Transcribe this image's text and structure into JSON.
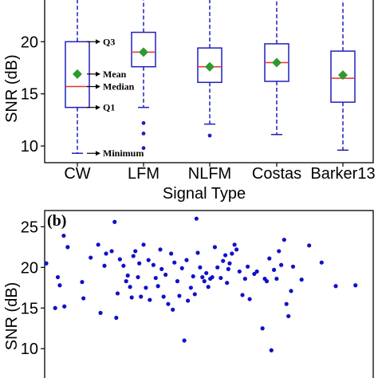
{
  "chart_data": [
    {
      "type": "box",
      "panel_label": "",
      "xlabel": "Signal Type",
      "ylabel": "SNR (dB)",
      "ylim": [
        8.4,
        24.0
      ],
      "yticks": [
        10,
        15,
        20
      ],
      "grid": false,
      "categories": [
        "CW",
        "LFM",
        "NLFM",
        "Costas",
        "Barker13"
      ],
      "boxes": [
        {
          "category": "CW",
          "whisker_low": 9.3,
          "q1": 13.7,
          "median": 15.7,
          "q3": 20.0,
          "whisker_high": 24.0,
          "mean": 16.9,
          "outliers": []
        },
        {
          "category": "LFM",
          "whisker_low": 13.7,
          "q1": 17.6,
          "median": 19.0,
          "q3": 20.9,
          "whisker_high": 24.0,
          "mean": 19.0,
          "outliers": [
            12.2,
            11.2,
            9.8
          ]
        },
        {
          "category": "NLFM",
          "whisker_low": 12.1,
          "q1": 16.1,
          "median": 17.6,
          "q3": 19.4,
          "whisker_high": 24.0,
          "mean": 17.6,
          "outliers": [
            11.0
          ]
        },
        {
          "category": "Costas",
          "whisker_low": 11.1,
          "q1": 16.2,
          "median": 18.0,
          "q3": 19.8,
          "whisker_high": 24.0,
          "mean": 18.0,
          "outliers": []
        },
        {
          "category": "Barker13",
          "whisker_low": 9.6,
          "q1": 14.2,
          "median": 16.5,
          "q3": 19.1,
          "whisker_high": 24.0,
          "mean": 16.8,
          "outliers": []
        }
      ],
      "annotations": [
        "Q3",
        "Mean",
        "Median",
        "Q1",
        "Minimum"
      ],
      "colors": {
        "box": "#1f1fbf",
        "median": "#e8322c",
        "mean": "#2e9a2e",
        "outlier": "#1f1fbf"
      }
    },
    {
      "type": "scatter",
      "panel_label": "(b)",
      "xlabel": "",
      "ylabel": "SNR (dB)",
      "ylim": [
        5.8,
        27.0
      ],
      "yticks": [
        10,
        15,
        20,
        25
      ],
      "grid": false,
      "point_color": "#1010c8",
      "points": [
        [
          0.4,
          20.5
        ],
        [
          3.2,
          15.0
        ],
        [
          4.0,
          18.8
        ],
        [
          4.6,
          17.8
        ],
        [
          5.8,
          23.9
        ],
        [
          6.0,
          15.2
        ],
        [
          7.0,
          22.5
        ],
        [
          11.4,
          18.2
        ],
        [
          11.8,
          16.2
        ],
        [
          14.0,
          21.2
        ],
        [
          16.3,
          22.8
        ],
        [
          17.0,
          14.4
        ],
        [
          18.2,
          20.2
        ],
        [
          18.7,
          21.7
        ],
        [
          20.4,
          22.0
        ],
        [
          21.3,
          25.6
        ],
        [
          21.8,
          13.8
        ],
        [
          22.2,
          16.8
        ],
        [
          22.9,
          21.0
        ],
        [
          24.0,
          20.2
        ],
        [
          24.8,
          18.3
        ],
        [
          25.3,
          19.0
        ],
        [
          26.0,
          17.6
        ],
        [
          26.5,
          16.3
        ],
        [
          27.0,
          21.4
        ],
        [
          27.6,
          22.0
        ],
        [
          28.4,
          18.8
        ],
        [
          28.8,
          20.5
        ],
        [
          29.3,
          16.4
        ],
        [
          30.1,
          22.8
        ],
        [
          30.8,
          17.5
        ],
        [
          31.6,
          20.9
        ],
        [
          32.0,
          16.0
        ],
        [
          33.1,
          20.3
        ],
        [
          33.8,
          18.7
        ],
        [
          34.5,
          17.7
        ],
        [
          35.2,
          22.2
        ],
        [
          35.6,
          19.8
        ],
        [
          36.2,
          16.4
        ],
        [
          36.8,
          19.1
        ],
        [
          37.6,
          15.5
        ],
        [
          38.5,
          21.7
        ],
        [
          39.0,
          14.8
        ],
        [
          39.5,
          20.6
        ],
        [
          40.4,
          18.3
        ],
        [
          41.0,
          16.5
        ],
        [
          41.8,
          19.9
        ],
        [
          42.5,
          11.0
        ],
        [
          43.2,
          20.9
        ],
        [
          43.6,
          15.9
        ],
        [
          44.5,
          17.5
        ],
        [
          45.2,
          18.9
        ],
        [
          45.7,
          16.7
        ],
        [
          46.2,
          26.0
        ],
        [
          46.6,
          21.8
        ],
        [
          47.3,
          20.0
        ],
        [
          48.0,
          18.8
        ],
        [
          48.6,
          18.3
        ],
        [
          49.2,
          19.3
        ],
        [
          49.8,
          17.6
        ],
        [
          50.4,
          18.6
        ],
        [
          51.0,
          18.8
        ],
        [
          51.8,
          22.5
        ],
        [
          52.6,
          20.0
        ],
        [
          53.6,
          18.7
        ],
        [
          54.3,
          20.8
        ],
        [
          55.0,
          21.5
        ],
        [
          55.5,
          18.1
        ],
        [
          55.9,
          19.8
        ],
        [
          56.3,
          20.5
        ],
        [
          57.0,
          21.7
        ],
        [
          57.8,
          22.8
        ],
        [
          58.4,
          22.2
        ],
        [
          59.3,
          19.5
        ],
        [
          60.2,
          16.6
        ],
        [
          61.0,
          18.6
        ],
        [
          61.8,
          20.1
        ],
        [
          62.4,
          16.1
        ],
        [
          63.8,
          19.2
        ],
        [
          64.6,
          19.5
        ],
        [
          66.3,
          12.5
        ],
        [
          67.0,
          18.6
        ],
        [
          67.6,
          18.3
        ],
        [
          68.4,
          21.1
        ],
        [
          69.0,
          9.8
        ],
        [
          69.8,
          19.7
        ],
        [
          70.6,
          18.6
        ],
        [
          71.3,
          22.0
        ],
        [
          72.0,
          20.3
        ],
        [
          72.9,
          23.4
        ],
        [
          73.6,
          15.5
        ],
        [
          74.2,
          14.0
        ],
        [
          75.0,
          17.1
        ],
        [
          75.6,
          20.1
        ],
        [
          78.2,
          18.5
        ],
        [
          80.5,
          22.7
        ],
        [
          84.3,
          20.6
        ],
        [
          88.6,
          17.7
        ],
        [
          94.6,
          17.8
        ]
      ]
    }
  ]
}
